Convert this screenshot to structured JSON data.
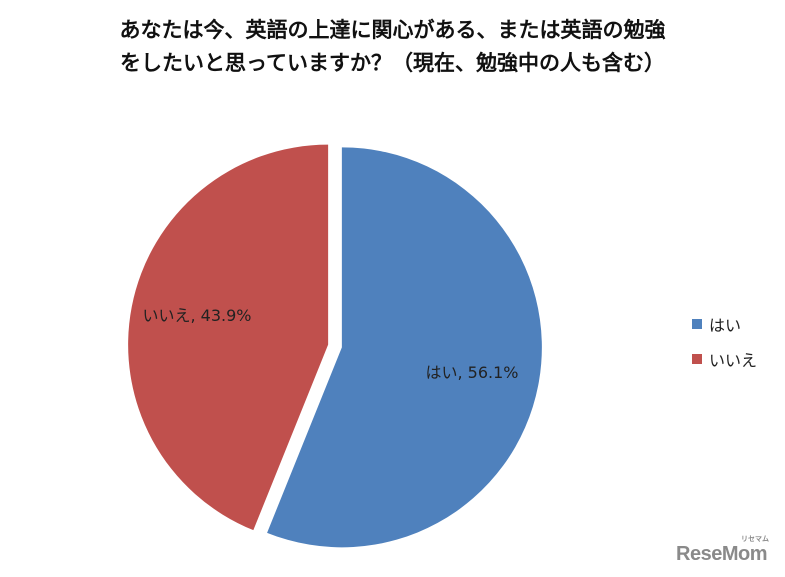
{
  "chart_data": {
    "type": "pie",
    "title_lines": [
      "あなたは今、英語の上達に関心がある、または英語の勉強",
      "をしたいと思っていますか？（現在、勉強中の人も含む）"
    ],
    "slices": [
      {
        "label": "はい",
        "value": 56.1,
        "data_label": "はい, 56.1%",
        "color": "#4f81bd"
      },
      {
        "label": "いいえ",
        "value": 43.9,
        "data_label": "いいえ, 43.9%",
        "color": "#c0504d"
      }
    ],
    "legend_position": "right",
    "exploded": true
  },
  "watermark": {
    "text": "ReseMom",
    "mark": "リセマム"
  }
}
